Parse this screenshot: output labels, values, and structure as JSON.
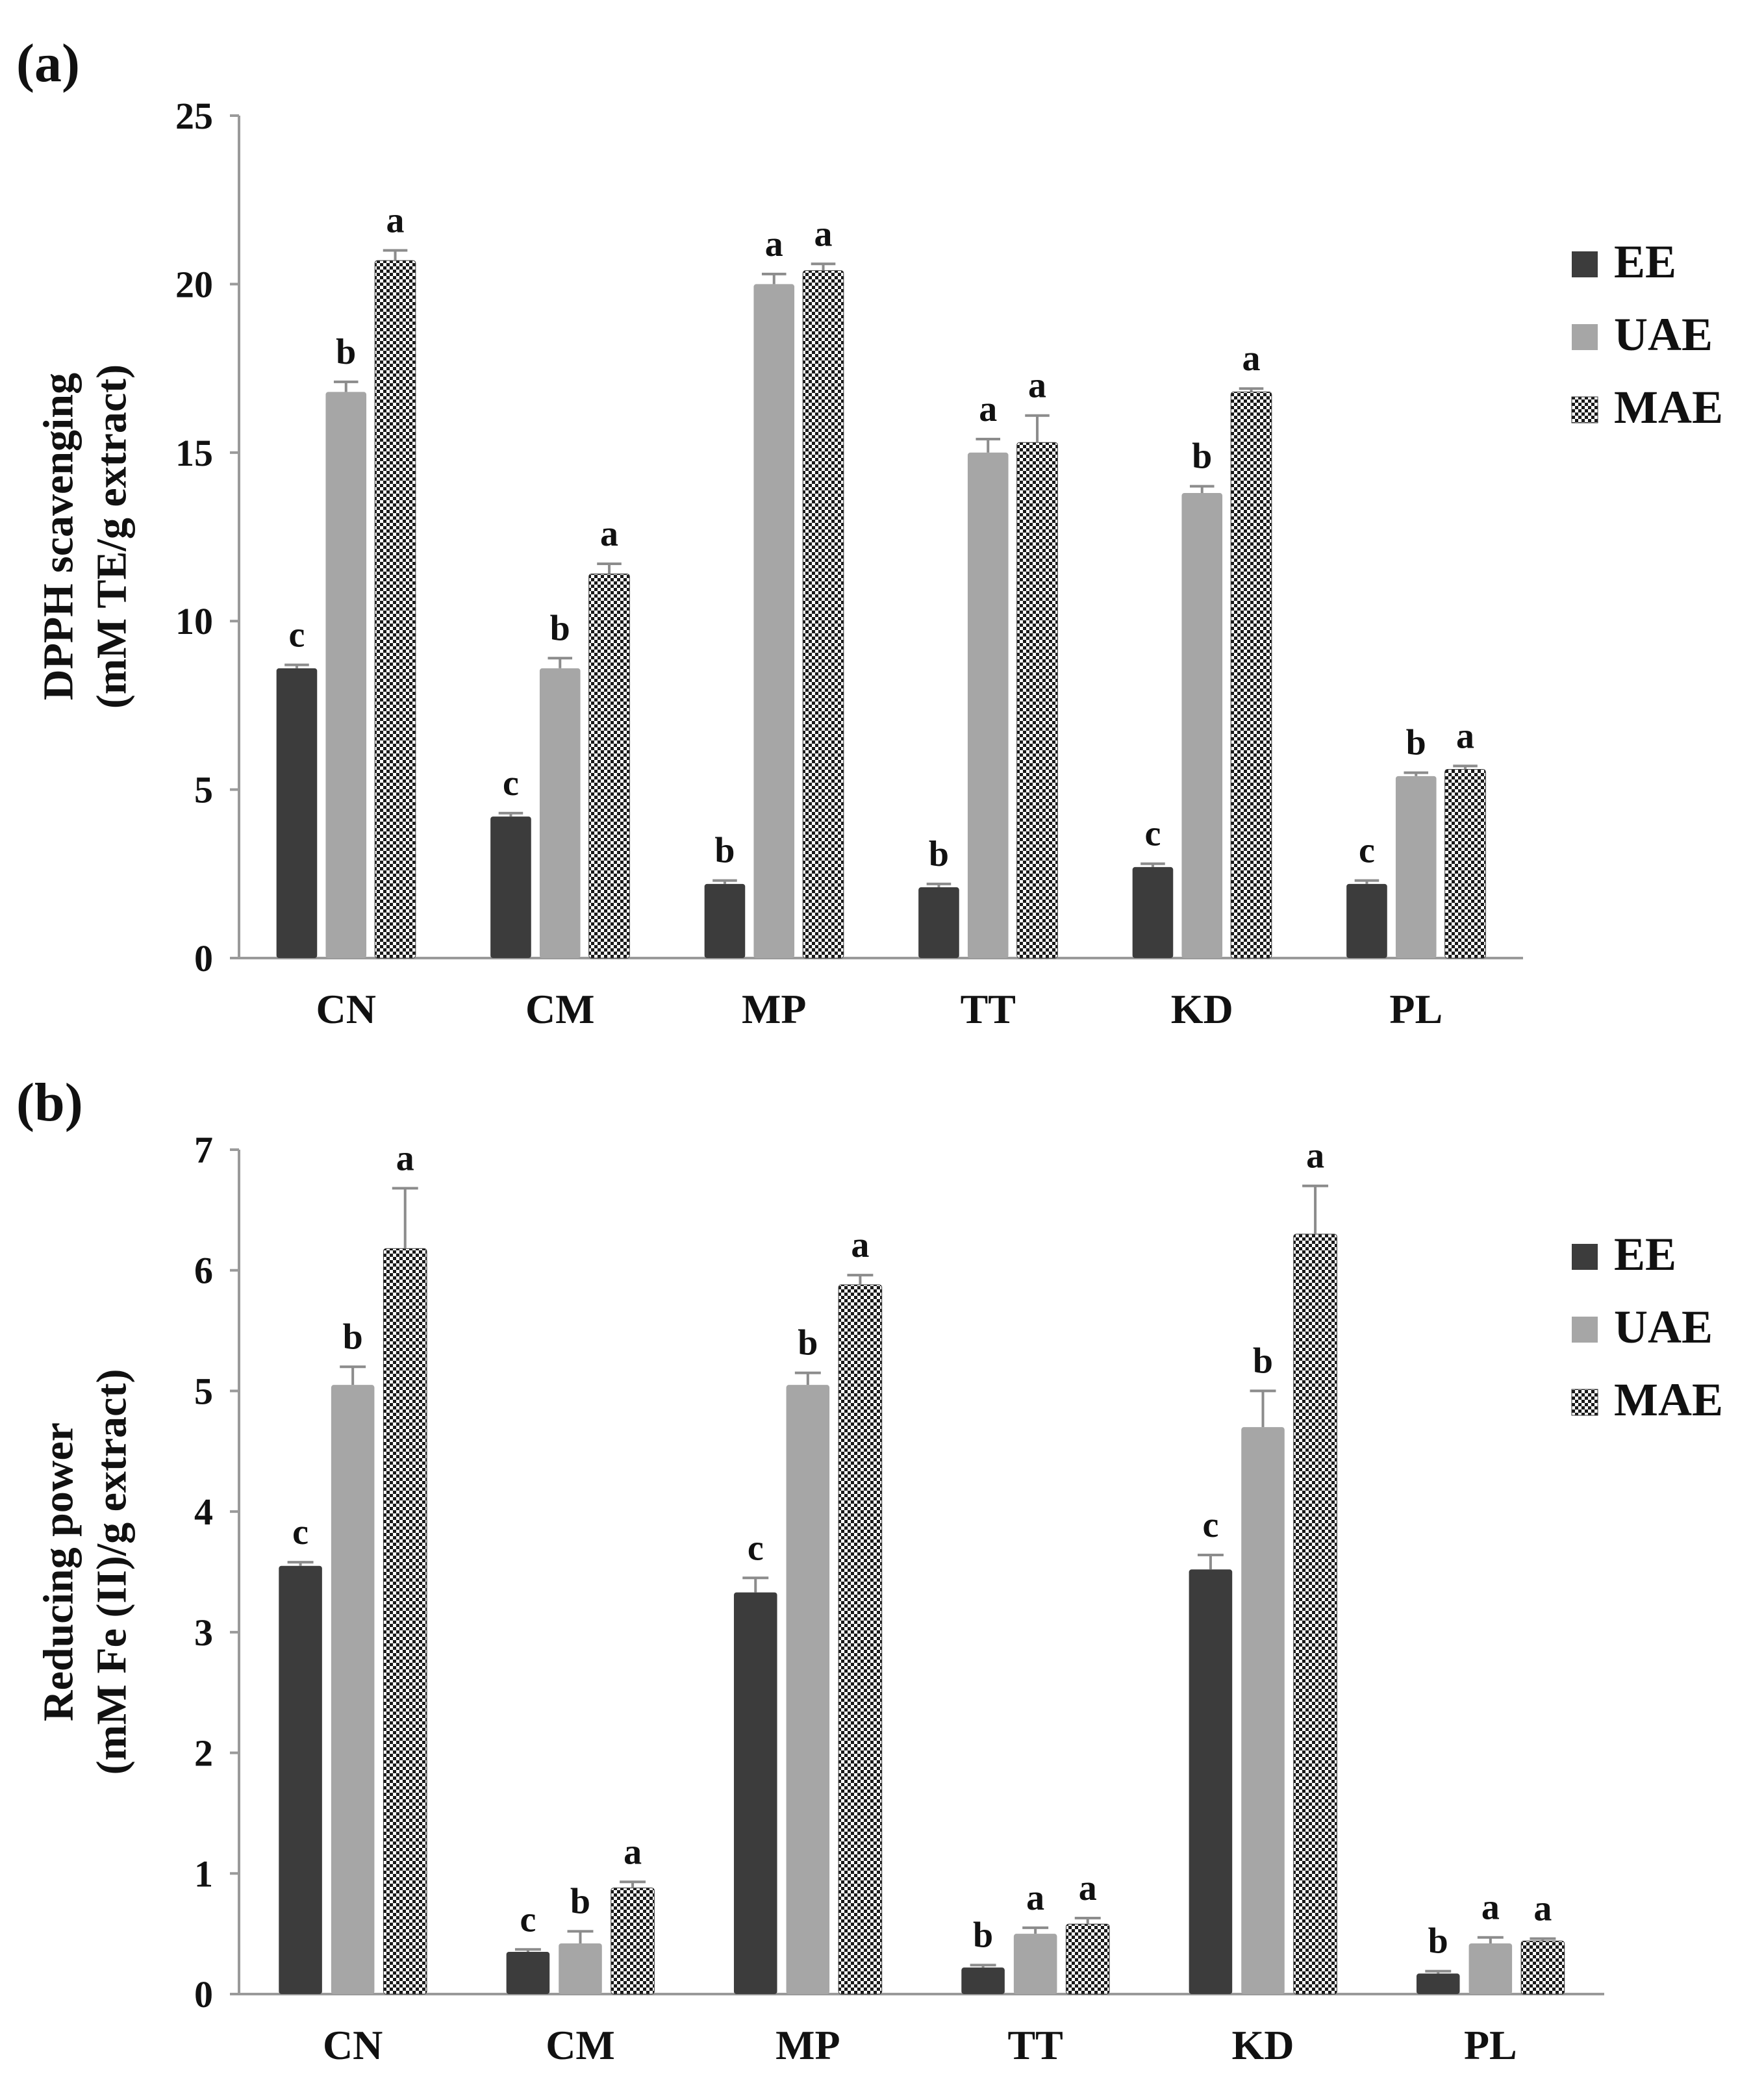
{
  "colors": {
    "EE": "#3c3c3c",
    "UAE": "#a6a6a6",
    "MAE_dark": "#1a1a1a",
    "MAE_light": "#ffffff",
    "axis": "#9a9a9a",
    "error": "#8c8c8c"
  },
  "chart_data": [
    {
      "type": "bar",
      "panel_label": "(a)",
      "ylabel_line1": "DPPH scavenging",
      "ylabel_line2": "(mM TE/g extract)",
      "xlabel": "",
      "ylim": [
        0,
        25
      ],
      "yticks": [
        "0",
        "5",
        "10",
        "15",
        "20",
        "25"
      ],
      "grid": false,
      "legend_position": "right",
      "categories": [
        "CN",
        "CM",
        "MP",
        "TT",
        "KD",
        "PL"
      ],
      "series": [
        {
          "name": "EE",
          "values": [
            8.6,
            4.2,
            2.2,
            2.1,
            2.7,
            2.2
          ],
          "errors": [
            0.1,
            0.1,
            0.1,
            0.1,
            0.1,
            0.1
          ],
          "letters": [
            "c",
            "c",
            "b",
            "b",
            "c",
            "c"
          ]
        },
        {
          "name": "UAE",
          "values": [
            16.8,
            8.6,
            20.0,
            15.0,
            13.8,
            5.4
          ],
          "errors": [
            0.3,
            0.3,
            0.3,
            0.4,
            0.2,
            0.1
          ],
          "letters": [
            "b",
            "b",
            "a",
            "a",
            "b",
            "b"
          ]
        },
        {
          "name": "MAE",
          "values": [
            20.7,
            11.4,
            20.4,
            15.3,
            16.8,
            5.6
          ],
          "errors": [
            0.3,
            0.3,
            0.2,
            0.8,
            0.1,
            0.1
          ],
          "letters": [
            "a",
            "a",
            "a",
            "a",
            "a",
            "a"
          ]
        }
      ]
    },
    {
      "type": "bar",
      "panel_label": "(b)",
      "ylabel_line1": "Reducing power",
      "ylabel_line2": "(mM Fe (II)/g extract)",
      "xlabel": "",
      "ylim": [
        0,
        7
      ],
      "yticks": [
        "0",
        "1",
        "2",
        "3",
        "4",
        "5",
        "6",
        "7"
      ],
      "grid": false,
      "legend_position": "right",
      "categories": [
        "CN",
        "CM",
        "MP",
        "TT",
        "KD",
        "PL"
      ],
      "series": [
        {
          "name": "EE",
          "values": [
            3.55,
            0.35,
            3.33,
            0.22,
            3.52,
            0.17
          ],
          "errors": [
            0.03,
            0.02,
            0.12,
            0.02,
            0.12,
            0.02
          ],
          "letters": [
            "c",
            "c",
            "c",
            "b",
            "c",
            "b"
          ]
        },
        {
          "name": "UAE",
          "values": [
            5.05,
            0.42,
            5.05,
            0.5,
            4.7,
            0.42
          ],
          "errors": [
            0.15,
            0.1,
            0.1,
            0.05,
            0.3,
            0.05
          ],
          "letters": [
            "b",
            "b",
            "b",
            "a",
            "b",
            "a"
          ]
        },
        {
          "name": "MAE",
          "values": [
            6.18,
            0.88,
            5.88,
            0.58,
            6.3,
            0.44
          ],
          "errors": [
            0.5,
            0.05,
            0.08,
            0.05,
            0.4,
            0.02
          ],
          "letters": [
            "a",
            "a",
            "a",
            "a",
            "a",
            "a"
          ]
        }
      ]
    }
  ]
}
